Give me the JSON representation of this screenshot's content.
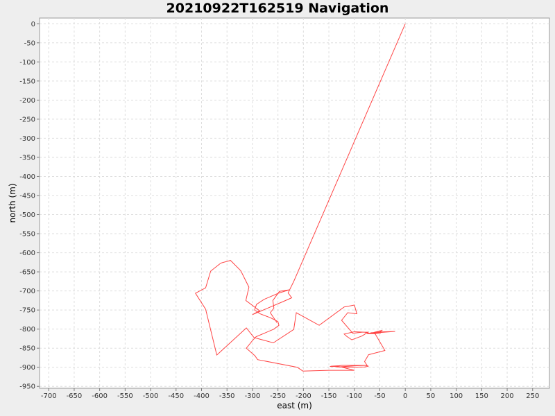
{
  "chart_data": {
    "type": "line",
    "title": "20210922T162519 Navigation",
    "xlabel": "east (m)",
    "ylabel": "north (m)",
    "xlim": [
      -718,
      283
    ],
    "ylim": [
      -955,
      15
    ],
    "grid": true,
    "line_color": "#ff4444",
    "xticks": [
      -700,
      -650,
      -600,
      -550,
      -500,
      -450,
      -400,
      -350,
      -300,
      -250,
      -200,
      -150,
      -100,
      -50,
      0,
      50,
      100,
      150,
      200,
      250
    ],
    "yticks": [
      0,
      -50,
      -100,
      -150,
      -200,
      -250,
      -300,
      -350,
      -400,
      -450,
      -500,
      -550,
      -600,
      -650,
      -700,
      -750,
      -800,
      -850,
      -900,
      -950
    ],
    "series": [
      {
        "x": [
          0,
          -219,
          -230,
          -223,
          -240,
          -300,
          -286,
          -313,
          -307,
          -323,
          -343,
          -362,
          -382,
          -392,
          -412,
          -392,
          -370,
          -312,
          -297,
          -259,
          -219,
          -214,
          -169,
          -120,
          -100,
          -95,
          -113,
          -125,
          -103,
          -85,
          -73,
          -85,
          -105,
          -115,
          -120,
          -100,
          -80,
          -70,
          -55,
          -45,
          -60,
          -40,
          -20,
          -50,
          -65,
          -52,
          -48,
          -62,
          -70,
          -60,
          -55,
          -68,
          -75,
          -65,
          -59,
          -40,
          -72,
          -80,
          -75,
          -95,
          -120,
          -135,
          -110,
          -80,
          -75,
          -73,
          -75,
          -80,
          -125,
          -130,
          -145,
          -148,
          -130,
          -100,
          -150,
          -180,
          -201,
          -212,
          -290,
          -295,
          -312,
          -300,
          -293,
          -258,
          -248,
          -250,
          -265,
          -285,
          -296,
          -292,
          -277,
          -249,
          -228,
          -247,
          -260,
          -258,
          -265,
          -252
        ],
        "y": [
          0,
          -675,
          -705,
          -718,
          -728,
          -762,
          -752,
          -725,
          -690,
          -647,
          -620,
          -627,
          -648,
          -692,
          -706,
          -748,
          -868,
          -797,
          -822,
          -836,
          -801,
          -757,
          -790,
          -742,
          -737,
          -760,
          -757,
          -777,
          -811,
          -808,
          -808,
          -818,
          -828,
          -819,
          -813,
          -807,
          -808,
          -811,
          -811,
          -803,
          -808,
          -807,
          -806,
          -809,
          -810,
          -808,
          -810,
          -812,
          -812,
          -808,
          -808,
          -812,
          -812,
          -809,
          -813,
          -856,
          -867,
          -885,
          -895,
          -896,
          -898,
          -899,
          -900,
          -899,
          -898,
          -897,
          -896,
          -895,
          -895,
          -896,
          -897,
          -898,
          -898,
          -908,
          -908,
          -909,
          -910,
          -900,
          -880,
          -870,
          -850,
          -830,
          -820,
          -800,
          -790,
          -780,
          -770,
          -760,
          -750,
          -735,
          -722,
          -706,
          -697,
          -701,
          -725,
          -745,
          -757,
          -783
        ]
      }
    ]
  }
}
